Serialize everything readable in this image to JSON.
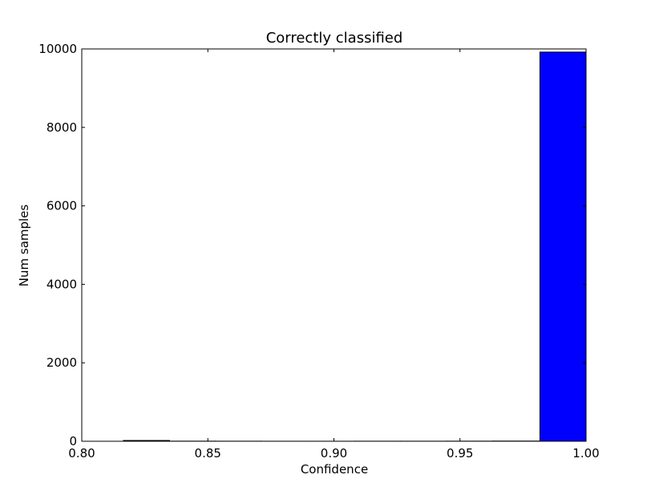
{
  "chart_data": {
    "type": "bar",
    "title": "Correctly classified",
    "xlabel": "Confidence",
    "ylabel": "Num samples",
    "xlim": [
      0.8,
      1.0
    ],
    "ylim": [
      0,
      10000
    ],
    "xticks": [
      "0.80",
      "0.85",
      "0.90",
      "0.95",
      "1.00"
    ],
    "yticks": [
      "0",
      "2000",
      "4000",
      "6000",
      "8000",
      "10000"
    ],
    "grid": false,
    "legend": "none",
    "bar_color": "#0000ff",
    "bars": [
      {
        "x0": 0.8165,
        "x1": 0.8348,
        "value": 20
      },
      {
        "x0": 0.8348,
        "x1": 0.8531,
        "value": 3
      },
      {
        "x0": 0.8531,
        "x1": 0.8714,
        "value": 2
      },
      {
        "x0": 0.8714,
        "x1": 0.8897,
        "value": 1
      },
      {
        "x0": 0.8897,
        "x1": 0.908,
        "value": 1
      },
      {
        "x0": 0.908,
        "x1": 0.9263,
        "value": 2
      },
      {
        "x0": 0.9263,
        "x1": 0.9446,
        "value": 2
      },
      {
        "x0": 0.9446,
        "x1": 0.9629,
        "value": 3
      },
      {
        "x0": 0.9629,
        "x1": 0.9817,
        "value": 5
      },
      {
        "x0": 0.9817,
        "x1": 1.0,
        "value": 9920
      }
    ]
  }
}
